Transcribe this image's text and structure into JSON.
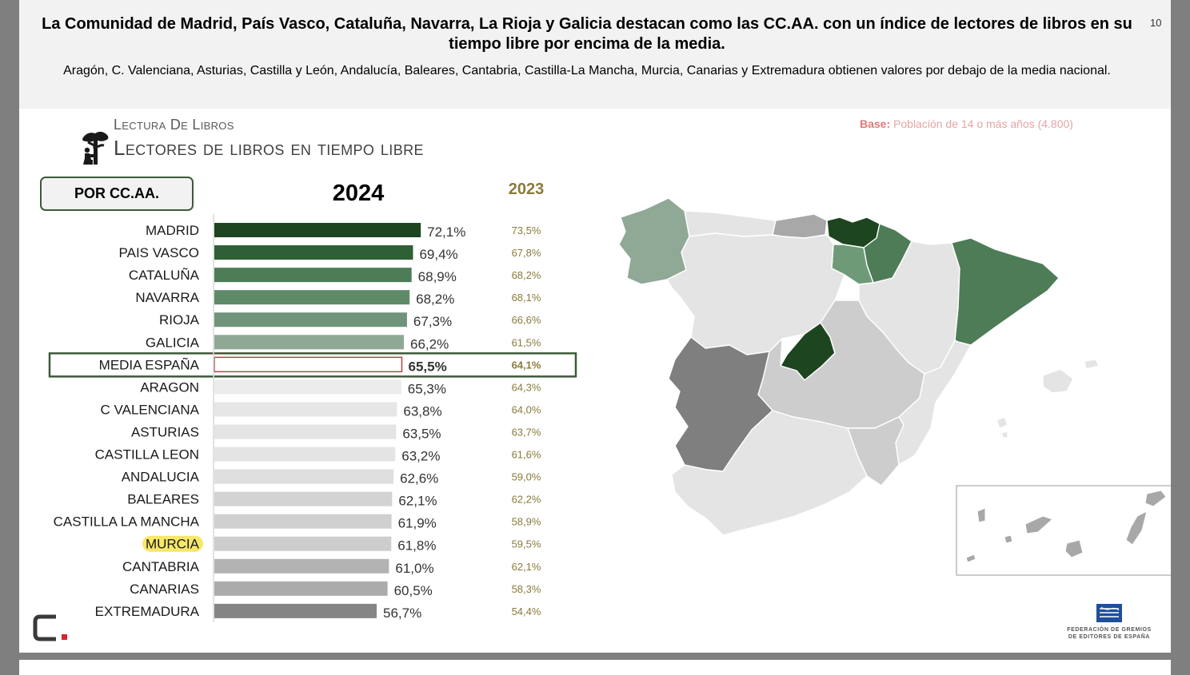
{
  "header": {
    "headline": "La Comunidad de Madrid, País Vasco, Cataluña, Navarra, La Rioja y Galicia destacan como las CC.AA. con un índice de lectores de libros en su tiempo libre por encima de la media.",
    "subline": "Aragón, C. Valenciana, Asturias, Castilla y León, Andalucía, Baleares, Cantabria, Castilla-La Mancha, Murcia, Canarias y Extremadura obtienen valores por debajo de la media nacional.",
    "page_number": "10"
  },
  "section": {
    "kicker": "Lectura De Libros",
    "title": "Lectores de libros en tiempo libre",
    "base_label": "Base:",
    "base_value": "Población de 14 o más años (4.800)",
    "pill_label": "POR CC.AA.",
    "year_main": "2024",
    "year_prev": "2023"
  },
  "chart_data": {
    "type": "bar",
    "orientation": "horizontal",
    "categories": [
      "MADRID",
      "PAIS VASCO",
      "CATALUÑA",
      "NAVARRA",
      "RIOJA",
      "GALICIA",
      "MEDIA ESPAÑA",
      "ARAGON",
      "C VALENCIANA",
      "ASTURIAS",
      "CASTILLA LEON",
      "ANDALUCIA",
      "BALEARES",
      "CASTILLA LA MANCHA",
      "MURCIA",
      "CANTABRIA",
      "CANARIAS",
      "EXTREMADURA"
    ],
    "series": [
      {
        "name": "2024",
        "values": [
          72.1,
          69.4,
          68.9,
          68.2,
          67.3,
          66.2,
          65.5,
          65.3,
          63.8,
          63.5,
          63.2,
          62.6,
          62.1,
          61.9,
          61.8,
          61.0,
          60.5,
          56.7
        ]
      },
      {
        "name": "2023",
        "values": [
          73.5,
          67.8,
          68.2,
          68.1,
          66.6,
          61.5,
          64.1,
          64.3,
          64.0,
          63.7,
          61.6,
          59.0,
          62.2,
          58.9,
          59.5,
          62.1,
          58.3,
          54.4
        ]
      }
    ],
    "labels_2024": [
      "72,1%",
      "69,4%",
      "68,9%",
      "68,2%",
      "67,3%",
      "66,2%",
      "65,5%",
      "65,3%",
      "63,8%",
      "63,5%",
      "63,2%",
      "62,6%",
      "62,1%",
      "61,9%",
      "61,8%",
      "61,0%",
      "60,5%",
      "56,7%"
    ],
    "labels_2023": [
      "73,5%",
      "67,8%",
      "68,2%",
      "68,1%",
      "66,6%",
      "61,5%",
      "64,1%",
      "64,3%",
      "64,0%",
      "63,7%",
      "61,6%",
      "59,0%",
      "62,2%",
      "58,9%",
      "59,5%",
      "62,1%",
      "58,3%",
      "54,4%"
    ],
    "bar_colors": [
      "#1c4520",
      "#2e5f35",
      "#4d7c57",
      "#5f8a68",
      "#70947a",
      "#8fa996",
      "#ffffff",
      "#ececec",
      "#e6e6e6",
      "#e4e4e4",
      "#e4e4e4",
      "#dedede",
      "#d3d3d3",
      "#d0d0d0",
      "#cdcdcd",
      "#b3b3b3",
      "#ababab",
      "#858585"
    ],
    "highlight_average": "MEDIA ESPAÑA",
    "highlight_marker": "MURCIA",
    "average_box_color": "#3d5a3a",
    "average_bar_border": "#b84545",
    "prev_year_color": "#8a7a3a",
    "marker_color": "#f5e34d"
  },
  "map_colors": {
    "dark": "#1c4520",
    "green": "#4d7c57",
    "mid_green": "#6f9a78",
    "pale_green": "#8fa996",
    "light": "#e4e4e4",
    "mid_gray": "#cdcdcd",
    "gray": "#a8a8a8",
    "dark_gray": "#7f7f7f"
  },
  "footer": {
    "fed_line1": "FEDERACIÓN DE GREMIOS",
    "fed_line2": "DE EDITORES DE ESPAÑA"
  }
}
